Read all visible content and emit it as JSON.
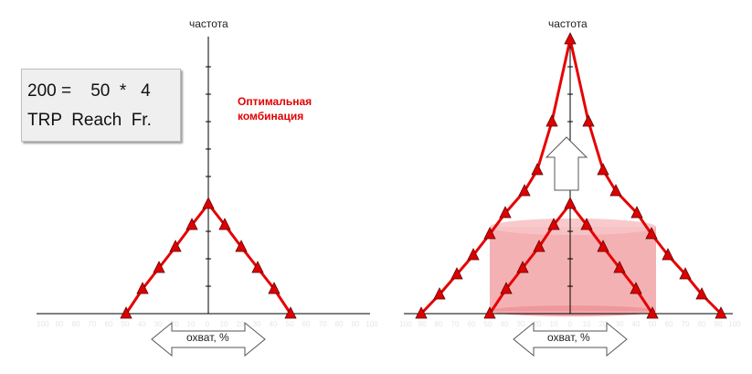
{
  "formula": {
    "line1": "200 =    50  *   4",
    "line2": "TRP  Reach  Fr."
  },
  "optimal_label_1": "Оптимальная",
  "optimal_label_2": "комбинация",
  "y_axis_label": "частота",
  "x_axis_label": "охват, %",
  "tick_labels": [
    "100",
    "90",
    "80",
    "70",
    "60",
    "50",
    "40",
    "30",
    "20",
    "10",
    "0",
    "10",
    "20",
    "30",
    "40",
    "50",
    "60",
    "70",
    "80",
    "90",
    "100"
  ],
  "colors": {
    "curve": "#e60000",
    "marker": "#dd0000",
    "cylinder": "#f2a3a6",
    "axis": "#000000"
  }
}
